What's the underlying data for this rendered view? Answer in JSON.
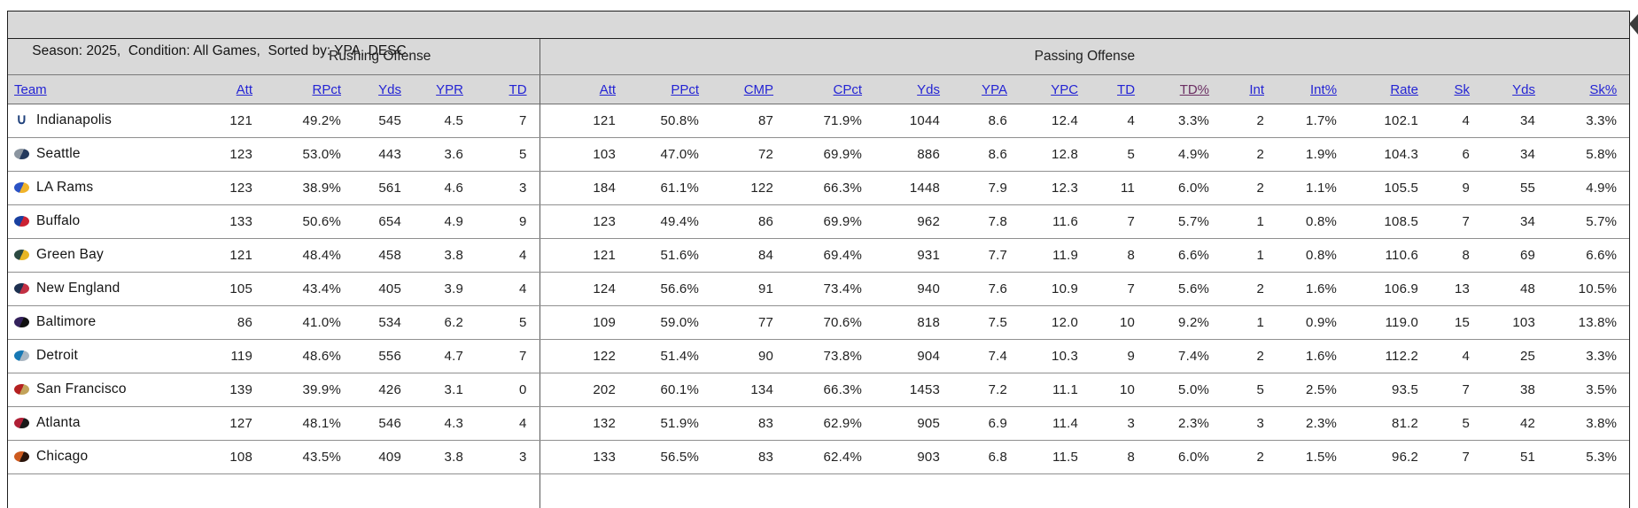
{
  "title_bar": {
    "text": "Season: 2025,  Condition: All Games,  Sorted by: YPA, DESC",
    "season": "2025",
    "condition": "All Games",
    "sorted_by": "YPA, DESC"
  },
  "colors": {
    "header_bg": "#d9d9d9",
    "link_blue": "#2424d4",
    "visited_link": "#6b2f63",
    "border_dark": "#1f1f1f",
    "row_line": "#8f8f8f"
  },
  "table": {
    "group_headers": {
      "team_spacer": "",
      "rushing": "Rushing Offense",
      "passing": "Passing Offense"
    },
    "columns": {
      "team": "Team",
      "rushing": [
        "Att",
        "RPct",
        "Yds",
        "YPR",
        "TD"
      ],
      "passing": [
        "Att",
        "PPct",
        "CMP",
        "CPct",
        "Yds",
        "YPA",
        "YPC",
        "TD",
        "TD%",
        "Int",
        "Int%",
        "Rate",
        "Sk",
        "Yds",
        "Sk%"
      ],
      "visited_header_index": 8
    },
    "rows": [
      {
        "team": "Indianapolis",
        "logo": {
          "icon": "colts-horseshoe-icon",
          "glyph": "∪",
          "c1": "#1d3f7a",
          "c2": "#1d3f7a"
        },
        "rushing": [
          "121",
          "49.2%",
          "545",
          "4.5",
          "7"
        ],
        "passing": [
          "121",
          "50.8%",
          "87",
          "71.9%",
          "1044",
          "8.6",
          "12.4",
          "4",
          "3.3%",
          "2",
          "1.7%",
          "102.1",
          "4",
          "34",
          "3.3%"
        ]
      },
      {
        "team": "Seattle",
        "logo": {
          "icon": "seahawks-bird-icon",
          "c1": "#8b95a0",
          "c2": "#243a5e"
        },
        "rushing": [
          "123",
          "53.0%",
          "443",
          "3.6",
          "5"
        ],
        "passing": [
          "103",
          "47.0%",
          "72",
          "69.9%",
          "886",
          "8.6",
          "12.8",
          "5",
          "4.9%",
          "2",
          "1.9%",
          "104.3",
          "6",
          "34",
          "5.8%"
        ]
      },
      {
        "team": "LA Rams",
        "logo": {
          "icon": "rams-horn-icon",
          "c1": "#2a52c4",
          "c2": "#f0b32a"
        },
        "rushing": [
          "123",
          "38.9%",
          "561",
          "4.6",
          "3"
        ],
        "passing": [
          "184",
          "61.1%",
          "122",
          "66.3%",
          "1448",
          "7.9",
          "12.3",
          "11",
          "6.0%",
          "2",
          "1.1%",
          "105.5",
          "9",
          "55",
          "4.9%"
        ]
      },
      {
        "team": "Buffalo",
        "logo": {
          "icon": "bills-buffalo-icon",
          "c1": "#1940a0",
          "c2": "#cc2233"
        },
        "rushing": [
          "133",
          "50.6%",
          "654",
          "4.9",
          "9"
        ],
        "passing": [
          "123",
          "49.4%",
          "86",
          "69.9%",
          "962",
          "7.8",
          "11.6",
          "7",
          "5.7%",
          "1",
          "0.8%",
          "108.5",
          "7",
          "34",
          "5.7%"
        ]
      },
      {
        "team": "Green Bay",
        "logo": {
          "icon": "packers-g-icon",
          "c1": "#2c4a42",
          "c2": "#e8b623"
        },
        "rushing": [
          "121",
          "48.4%",
          "458",
          "3.8",
          "4"
        ],
        "passing": [
          "121",
          "51.6%",
          "84",
          "69.4%",
          "931",
          "7.7",
          "11.9",
          "8",
          "6.6%",
          "1",
          "0.8%",
          "110.6",
          "8",
          "69",
          "6.6%"
        ]
      },
      {
        "team": "New England",
        "logo": {
          "icon": "patriots-head-icon",
          "c1": "#1d3050",
          "c2": "#c23044"
        },
        "rushing": [
          "105",
          "43.4%",
          "405",
          "3.9",
          "4"
        ],
        "passing": [
          "124",
          "56.6%",
          "91",
          "73.4%",
          "940",
          "7.6",
          "10.9",
          "7",
          "5.6%",
          "2",
          "1.6%",
          "106.9",
          "13",
          "48",
          "10.5%"
        ]
      },
      {
        "team": "Baltimore",
        "logo": {
          "icon": "ravens-bird-icon",
          "c1": "#33215c",
          "c2": "#111111"
        },
        "rushing": [
          "86",
          "41.0%",
          "534",
          "6.2",
          "5"
        ],
        "passing": [
          "109",
          "59.0%",
          "77",
          "70.6%",
          "818",
          "7.5",
          "12.0",
          "10",
          "9.2%",
          "1",
          "0.9%",
          "119.0",
          "15",
          "103",
          "13.8%"
        ]
      },
      {
        "team": "Detroit",
        "logo": {
          "icon": "lions-lion-icon",
          "c1": "#1778b4",
          "c2": "#a9b6c2"
        },
        "rushing": [
          "119",
          "48.6%",
          "556",
          "4.7",
          "7"
        ],
        "passing": [
          "122",
          "51.4%",
          "90",
          "73.8%",
          "904",
          "7.4",
          "10.3",
          "9",
          "7.4%",
          "2",
          "1.6%",
          "112.2",
          "4",
          "25",
          "3.3%"
        ]
      },
      {
        "team": "San Francisco",
        "logo": {
          "icon": "49ers-sf-oval-icon",
          "c1": "#b42020",
          "c2": "#c2a35a"
        },
        "rushing": [
          "139",
          "39.9%",
          "426",
          "3.1",
          "0"
        ],
        "passing": [
          "202",
          "60.1%",
          "134",
          "66.3%",
          "1453",
          "7.2",
          "11.1",
          "10",
          "5.0%",
          "5",
          "2.5%",
          "93.5",
          "7",
          "38",
          "3.5%"
        ]
      },
      {
        "team": "Atlanta",
        "logo": {
          "icon": "falcons-bird-icon",
          "c1": "#b01f35",
          "c2": "#191919"
        },
        "rushing": [
          "127",
          "48.1%",
          "546",
          "4.3",
          "4"
        ],
        "passing": [
          "132",
          "51.9%",
          "83",
          "62.9%",
          "905",
          "6.9",
          "11.4",
          "3",
          "2.3%",
          "3",
          "2.3%",
          "81.2",
          "5",
          "42",
          "3.8%"
        ]
      },
      {
        "team": "Chicago",
        "logo": {
          "icon": "bears-head-icon",
          "c1": "#cd5a1e",
          "c2": "#2a140a"
        },
        "rushing": [
          "108",
          "43.5%",
          "409",
          "3.8",
          "3"
        ],
        "passing": [
          "133",
          "56.5%",
          "83",
          "62.4%",
          "903",
          "6.8",
          "11.5",
          "8",
          "6.0%",
          "2",
          "1.5%",
          "96.2",
          "7",
          "51",
          "5.3%"
        ]
      }
    ]
  }
}
